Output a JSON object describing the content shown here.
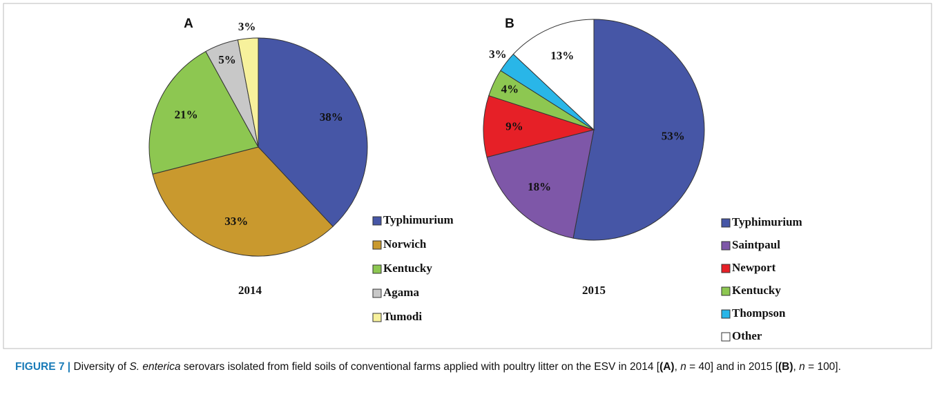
{
  "chart_data": [
    {
      "type": "pie",
      "panel": "A",
      "xlabel": "2014",
      "categories": [
        "Typhimurium",
        "Norwich",
        "Kentucky",
        "Agama",
        "Tumodi"
      ],
      "values": [
        38,
        33,
        21,
        5,
        3
      ],
      "value_labels": [
        "38%",
        "33%",
        "21%",
        "5%",
        "3%"
      ],
      "colors": [
        "#4656a6",
        "#c9992e",
        "#8dc751",
        "#c8c8c8",
        "#f7f19c"
      ],
      "legend": "right"
    },
    {
      "type": "pie",
      "panel": "B",
      "xlabel": "2015",
      "categories": [
        "Typhimurium",
        "Saintpaul",
        "Newport",
        "Kentucky",
        "Thompson",
        "Other"
      ],
      "values": [
        53,
        18,
        9,
        4,
        3,
        13
      ],
      "value_labels": [
        "53%",
        "18%",
        "9%",
        "4%",
        "3%",
        "13%"
      ],
      "colors": [
        "#4656a6",
        "#7e57a8",
        "#e62027",
        "#8dc751",
        "#29b6e8",
        "#ffffff"
      ],
      "legend": "right"
    }
  ],
  "caption": {
    "label": "FIGURE 7 |",
    "parts": [
      " Diversity of ",
      "S. enterica",
      " serovars isolated from field soils of conventional farms applied with poultry litter on the ESV in 2014 [",
      "(A)",
      ", ",
      "n",
      " = 40] and in 2015 [",
      "(B)",
      ", ",
      "n",
      " = 100]."
    ]
  }
}
